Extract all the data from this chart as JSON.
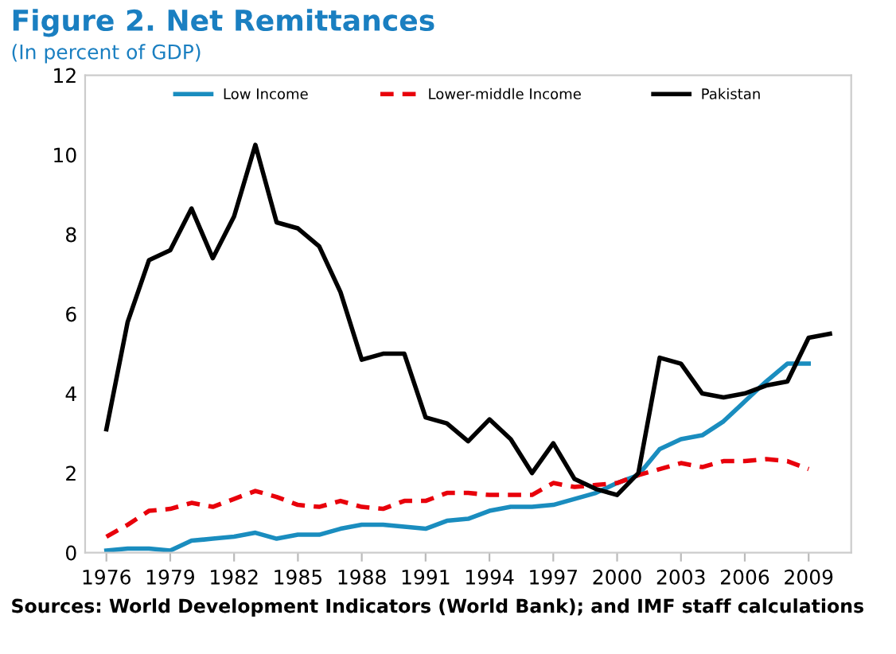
{
  "chart_data": {
    "type": "line",
    "title": "Figure 2. Net Remittances",
    "subtitle": "(In percent of GDP)",
    "categories": [
      "1976",
      null,
      null,
      "1979",
      null,
      null,
      "1982",
      null,
      null,
      "1985",
      null,
      null,
      "1988",
      null,
      null,
      "1991",
      null,
      null,
      "1994",
      null,
      null,
      "1997",
      null,
      null,
      "2000",
      null,
      null,
      "2003",
      null,
      null,
      "2006",
      null,
      null,
      "2009",
      null
    ],
    "series": [
      {
        "name": "Low Income",
        "color": "#1a8dbf",
        "line_style": "solid",
        "values": [
          0.05,
          0.1,
          0.1,
          0.05,
          0.3,
          0.35,
          0.4,
          0.5,
          0.35,
          0.45,
          0.45,
          0.6,
          0.7,
          0.7,
          0.65,
          0.6,
          0.8,
          0.85,
          1.05,
          1.15,
          1.15,
          1.2,
          1.35,
          1.5,
          1.75,
          1.95,
          2.6,
          2.85,
          2.95,
          3.3,
          3.8,
          4.3,
          4.75,
          4.75,
          null
        ]
      },
      {
        "name": "Lower-middle Income",
        "color": "#e8000b",
        "line_style": "dashed",
        "values": [
          0.4,
          0.7,
          1.05,
          1.1,
          1.25,
          1.15,
          1.35,
          1.55,
          1.4,
          1.2,
          1.15,
          1.3,
          1.15,
          1.1,
          1.3,
          1.3,
          1.5,
          1.5,
          1.45,
          1.45,
          1.45,
          1.75,
          1.65,
          1.7,
          1.75,
          1.95,
          2.1,
          2.25,
          2.15,
          2.3,
          2.3,
          2.35,
          2.3,
          2.1,
          null
        ]
      },
      {
        "name": "Pakistan",
        "color": "#000000",
        "line_style": "solid",
        "values": [
          3.1,
          5.8,
          7.35,
          7.6,
          8.65,
          7.4,
          8.45,
          10.25,
          8.3,
          8.15,
          7.7,
          6.55,
          4.85,
          5.0,
          5.0,
          3.4,
          3.25,
          2.8,
          3.35,
          2.85,
          2.0,
          2.75,
          1.85,
          1.6,
          1.45,
          2.0,
          4.9,
          4.75,
          4.0,
          3.9,
          4.0,
          4.2,
          4.3,
          5.4,
          5.5
        ]
      }
    ],
    "ylim": [
      0,
      12
    ],
    "yticks": [
      0,
      2,
      4,
      6,
      8,
      10,
      12
    ],
    "grid": false,
    "legend": "top",
    "marker": "none",
    "annotations": [
      "Sources: World Development Indicators (World Bank); and IMF staff calculations"
    ]
  }
}
